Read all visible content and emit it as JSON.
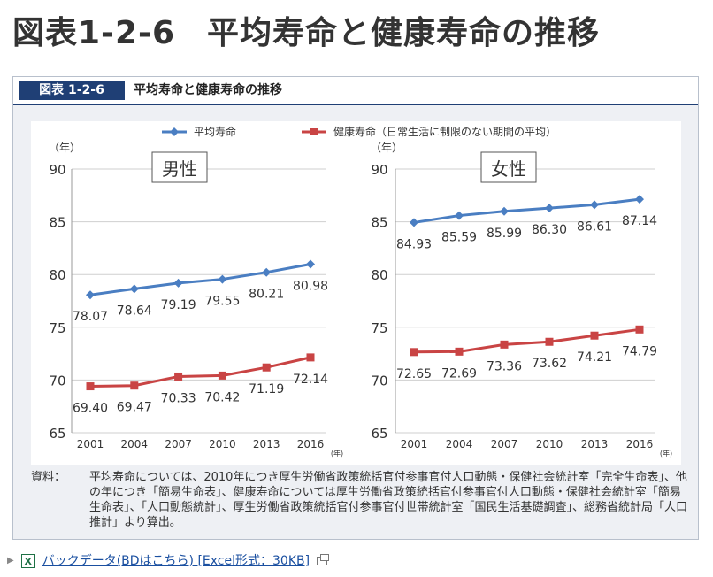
{
  "page": {
    "title_part1": "図表1-2-6",
    "title_part2": "平均寿命と健康寿命の推移"
  },
  "figure": {
    "number": "図表 1-2-6",
    "title": "平均寿命と健康寿命の推移"
  },
  "colors": {
    "life_line": "#4a7ec2",
    "health_line": "#c94444",
    "header_bg": "#1f3f75"
  },
  "chart_data": {
    "type": "line",
    "legend": [
      "平均寿命",
      "健康寿命（日常生活に制限のない期間の平均）"
    ],
    "ylabel": "（年）",
    "xlabel": "(年)",
    "ylim": [
      65,
      90
    ],
    "yticks": [
      65,
      70,
      75,
      80,
      85,
      90
    ],
    "categories": [
      "2001",
      "2004",
      "2007",
      "2010",
      "2013",
      "2016"
    ],
    "panels": [
      {
        "title": "男性",
        "series": [
          {
            "name": "平均寿命",
            "values": [
              78.07,
              78.64,
              79.19,
              79.55,
              80.21,
              80.98
            ],
            "labels": [
              "78.07",
              "78.64",
              "79.19",
              "79.55",
              "80.21",
              "80.98"
            ]
          },
          {
            "name": "健康寿命（日常生活に制限のない期間の平均）",
            "values": [
              69.4,
              69.47,
              70.33,
              70.42,
              71.19,
              72.14
            ],
            "labels": [
              "69.40",
              "69.47",
              "70.33",
              "70.42",
              "71.19",
              "72.14"
            ]
          }
        ]
      },
      {
        "title": "女性",
        "series": [
          {
            "name": "平均寿命",
            "values": [
              84.93,
              85.59,
              85.99,
              86.3,
              86.61,
              87.14
            ],
            "labels": [
              "84.93",
              "85.59",
              "85.99",
              "86.30",
              "86.61",
              "87.14"
            ]
          },
          {
            "name": "健康寿命（日常生活に制限のない期間の平均）",
            "values": [
              72.65,
              72.69,
              73.36,
              73.62,
              74.21,
              74.79
            ],
            "labels": [
              "72.65",
              "72.69",
              "73.36",
              "73.62",
              "74.21",
              "74.79"
            ]
          }
        ]
      }
    ]
  },
  "source": {
    "label": "資料：",
    "text": "平均寿命については、2010年につき厚生労働省政策統括官付参事官付人口動態・保健社会統計室「完全生命表」、他の年につき「簡易生命表」、健康寿命については厚生労働省政策統括官付参事官付人口動態・保健社会統計室「簡易生命表」、「人口動態統計」、厚生労働省政策統括官付参事官付世帯統計室「国民生活基礎調査」、総務省統計局「人口推計」より算出。"
  },
  "footer": {
    "icon_letter": "X",
    "link_text": "バックデータ(BDはこちら) [Excel形式：30KB]"
  }
}
